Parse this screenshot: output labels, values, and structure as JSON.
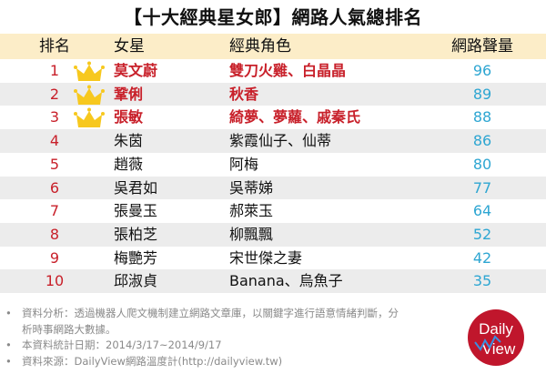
{
  "title": "【十大經典星女郎】網路人氣總排名",
  "headers": {
    "rank": "排名",
    "star": "女星",
    "role": "經典角色",
    "score": "網路聲量"
  },
  "rows": [
    {
      "rank": "1",
      "star": "莫文蔚",
      "role": "雙刀火雞、白晶晶",
      "score": "96",
      "crown": true
    },
    {
      "rank": "2",
      "star": "鞏俐",
      "role": "秋香",
      "score": "89",
      "crown": true
    },
    {
      "rank": "3",
      "star": "張敏",
      "role": "綺夢、夢蘿、戚秦氏",
      "score": "88",
      "crown": true
    },
    {
      "rank": "4",
      "star": "朱茵",
      "role": "紫霞仙子、仙蒂",
      "score": "86"
    },
    {
      "rank": "5",
      "star": "趙薇",
      "role": "阿梅",
      "score": "80"
    },
    {
      "rank": "6",
      "star": "吳君如",
      "role": "吳蒂娣",
      "score": "77"
    },
    {
      "rank": "7",
      "star": "張曼玉",
      "role": "郝萊玉",
      "score": "64"
    },
    {
      "rank": "8",
      "star": "張柏芝",
      "role": "柳飄飄",
      "score": "52"
    },
    {
      "rank": "9",
      "star": "梅艷芳",
      "role": "宋世傑之妻",
      "score": "42"
    },
    {
      "rank": "10",
      "star": "邱淑貞",
      "role": "Banana、烏魚子",
      "score": "35"
    }
  ],
  "notes": [
    "資料分析：透過機器人爬文機制建立網路文章庫，以關鍵字進行語意情緒判斷，分析時事網路大數據。",
    "本資料統計日期：2014/3/17~2014/9/17",
    "資料來源：DailyView網路溫度計(http://dailyview.tw)"
  ],
  "bullet": "•",
  "logo": {
    "line1": "Daily",
    "line2": "View",
    "color": "#c0162c"
  },
  "colors": {
    "header_bg": "#fcedc8",
    "alt_row": "#ececec",
    "highlight": "#c8202a",
    "score": "#2ea6d2",
    "crown": "#f7c81e"
  }
}
